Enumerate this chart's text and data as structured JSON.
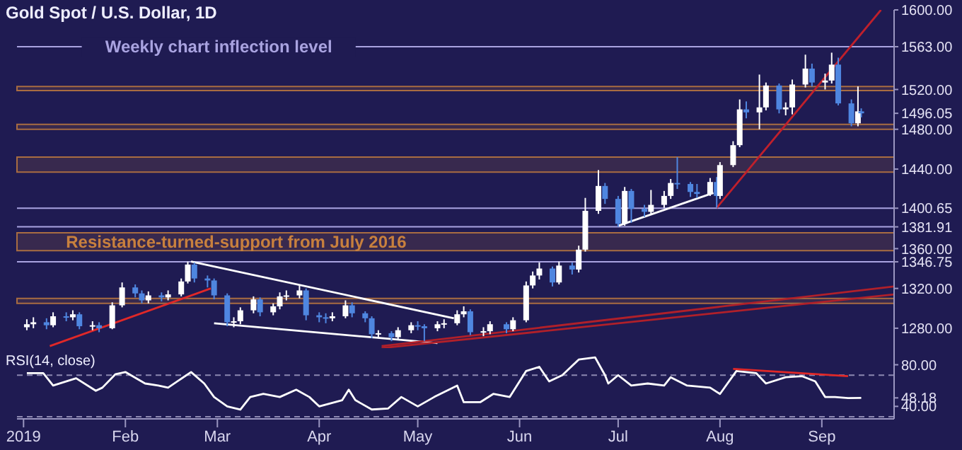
{
  "chart_data": [
    {
      "type": "candlestick",
      "title": "Gold Spot / U.S. Dollar, 1D",
      "x": [
        "2019-01-02",
        "2019-01-04",
        "2019-01-08",
        "2019-01-10",
        "2019-01-14",
        "2019-01-16",
        "2019-01-18",
        "2019-01-22",
        "2019-01-24",
        "2019-01-28",
        "2019-01-31",
        "2019-02-04",
        "2019-02-06",
        "2019-02-08",
        "2019-02-12",
        "2019-02-14",
        "2019-02-18",
        "2019-02-20",
        "2019-02-22",
        "2019-02-26",
        "2019-02-28",
        "2019-03-04",
        "2019-03-06",
        "2019-03-08",
        "2019-03-12",
        "2019-03-14",
        "2019-03-18",
        "2019-03-20",
        "2019-03-22",
        "2019-03-26",
        "2019-03-28",
        "2019-04-01",
        "2019-04-03",
        "2019-04-05",
        "2019-04-09",
        "2019-04-11",
        "2019-04-15",
        "2019-04-17",
        "2019-04-19",
        "2019-04-23",
        "2019-04-25",
        "2019-04-29",
        "2019-05-01",
        "2019-05-03",
        "2019-05-07",
        "2019-05-09",
        "2019-05-13",
        "2019-05-15",
        "2019-05-17",
        "2019-05-21",
        "2019-05-23",
        "2019-05-28",
        "2019-05-30",
        "2019-06-03",
        "2019-06-05",
        "2019-06-07",
        "2019-06-11",
        "2019-06-13",
        "2019-06-17",
        "2019-06-19",
        "2019-06-21",
        "2019-06-25",
        "2019-06-27",
        "2019-07-01",
        "2019-07-03",
        "2019-07-05",
        "2019-07-09",
        "2019-07-11",
        "2019-07-15",
        "2019-07-17",
        "2019-07-19",
        "2019-07-23",
        "2019-07-25",
        "2019-07-29",
        "2019-07-31",
        "2019-08-01",
        "2019-08-05",
        "2019-08-07",
        "2019-08-09",
        "2019-08-13",
        "2019-08-15",
        "2019-08-19",
        "2019-08-21",
        "2019-08-23",
        "2019-08-27",
        "2019-08-29",
        "2019-09-02",
        "2019-09-04",
        "2019-09-06",
        "2019-09-10",
        "2019-09-12",
        "2019-09-13"
      ],
      "ohlc": [
        [
          1281,
          1289,
          1278,
          1284
        ],
        [
          1284,
          1291,
          1280,
          1286
        ],
        [
          1286,
          1290,
          1279,
          1283
        ],
        [
          1283,
          1296,
          1281,
          1292
        ],
        [
          1292,
          1296,
          1287,
          1291
        ],
        [
          1291,
          1298,
          1288,
          1294
        ],
        [
          1294,
          1296,
          1279,
          1282
        ],
        [
          1282,
          1287,
          1278,
          1283
        ],
        [
          1283,
          1286,
          1276,
          1280
        ],
        [
          1280,
          1306,
          1279,
          1303
        ],
        [
          1303,
          1326,
          1301,
          1321
        ],
        [
          1321,
          1324,
          1311,
          1315
        ],
        [
          1315,
          1318,
          1305,
          1308
        ],
        [
          1308,
          1317,
          1305,
          1313
        ],
        [
          1313,
          1316,
          1307,
          1311
        ],
        [
          1311,
          1318,
          1308,
          1314
        ],
        [
          1314,
          1330,
          1312,
          1327
        ],
        [
          1327,
          1347,
          1325,
          1344
        ],
        [
          1344,
          1346,
          1326,
          1330
        ],
        [
          1330,
          1333,
          1321,
          1328
        ],
        [
          1328,
          1330,
          1309,
          1313
        ],
        [
          1313,
          1315,
          1282,
          1286
        ],
        [
          1286,
          1291,
          1281,
          1287
        ],
        [
          1287,
          1301,
          1284,
          1298
        ],
        [
          1298,
          1312,
          1295,
          1309
        ],
        [
          1309,
          1311,
          1292,
          1296
        ],
        [
          1296,
          1305,
          1293,
          1302
        ],
        [
          1302,
          1316,
          1299,
          1312
        ],
        [
          1312,
          1318,
          1308,
          1313
        ],
        [
          1313,
          1324,
          1310,
          1318
        ],
        [
          1318,
          1320,
          1288,
          1293
        ],
        [
          1293,
          1296,
          1286,
          1291
        ],
        [
          1291,
          1295,
          1285,
          1290
        ],
        [
          1290,
          1296,
          1287,
          1292
        ],
        [
          1292,
          1308,
          1290,
          1303
        ],
        [
          1303,
          1306,
          1291,
          1295
        ],
        [
          1295,
          1297,
          1286,
          1290
        ],
        [
          1290,
          1292,
          1270,
          1274
        ],
        [
          1274,
          1278,
          1271,
          1275
        ],
        [
          1275,
          1277,
          1267,
          1271
        ],
        [
          1271,
          1281,
          1268,
          1278
        ],
        [
          1278,
          1286,
          1275,
          1283
        ],
        [
          1283,
          1287,
          1278,
          1282
        ],
        [
          1282,
          1284,
          1267,
          1280
        ],
        [
          1280,
          1287,
          1277,
          1284
        ],
        [
          1284,
          1289,
          1280,
          1285
        ],
        [
          1285,
          1298,
          1283,
          1294
        ],
        [
          1294,
          1302,
          1291,
          1297
        ],
        [
          1297,
          1299,
          1273,
          1276
        ],
        [
          1276,
          1281,
          1272,
          1277
        ],
        [
          1277,
          1287,
          1274,
          1284
        ],
        [
          1284,
          1286,
          1275,
          1279
        ],
        [
          1279,
          1291,
          1277,
          1288
        ],
        [
          1288,
          1327,
          1286,
          1323
        ],
        [
          1323,
          1337,
          1320,
          1333
        ],
        [
          1333,
          1346,
          1329,
          1340
        ],
        [
          1340,
          1342,
          1322,
          1326
        ],
        [
          1326,
          1347,
          1324,
          1343
        ],
        [
          1343,
          1346,
          1334,
          1339
        ],
        [
          1339,
          1363,
          1336,
          1359
        ],
        [
          1359,
          1411,
          1357,
          1398
        ],
        [
          1398,
          1439,
          1395,
          1423
        ],
        [
          1423,
          1426,
          1405,
          1410
        ],
        [
          1410,
          1413,
          1382,
          1385
        ],
        [
          1385,
          1422,
          1383,
          1418
        ],
        [
          1418,
          1420,
          1386,
          1400
        ],
        [
          1400,
          1404,
          1392,
          1397
        ],
        [
          1397,
          1419,
          1394,
          1404
        ],
        [
          1404,
          1418,
          1401,
          1413
        ],
        [
          1413,
          1430,
          1410,
          1426
        ],
        [
          1426,
          1452,
          1420,
          1425
        ],
        [
          1425,
          1427,
          1412,
          1417
        ],
        [
          1417,
          1425,
          1411,
          1415
        ],
        [
          1415,
          1431,
          1413,
          1427
        ],
        [
          1427,
          1432,
          1401,
          1413
        ],
        [
          1413,
          1447,
          1410,
          1444
        ],
        [
          1444,
          1468,
          1442,
          1464
        ],
        [
          1464,
          1510,
          1462,
          1500
        ],
        [
          1500,
          1508,
          1491,
          1497
        ],
        [
          1497,
          1535,
          1480,
          1502
        ],
        [
          1502,
          1527,
          1499,
          1524
        ],
        [
          1524,
          1526,
          1496,
          1500
        ],
        [
          1500,
          1507,
          1494,
          1502
        ],
        [
          1502,
          1530,
          1495,
          1525
        ],
        [
          1525,
          1555,
          1522,
          1541
        ],
        [
          1541,
          1546,
          1523,
          1527
        ],
        [
          1527,
          1536,
          1520,
          1529
        ],
        [
          1529,
          1557,
          1526,
          1545
        ],
        [
          1545,
          1552,
          1504,
          1506
        ],
        [
          1506,
          1510,
          1483,
          1486
        ],
        [
          1486,
          1523,
          1483,
          1498
        ],
        [
          1498,
          1501,
          1492,
          1496.05
        ]
      ],
      "series": [
        {
          "type": "line",
          "x": [
            "2019-01-09",
            "2019-02-27"
          ],
          "values": [
            1262,
            1320
          ],
          "color": "#e02828"
        },
        {
          "type": "line",
          "x": [
            "2019-02-21",
            "2019-05-12"
          ],
          "values": [
            1347,
            1290
          ],
          "color": "#ffffff"
        },
        {
          "type": "line",
          "x": [
            "2019-02-28",
            "2019-05-07"
          ],
          "values": [
            1285,
            1265
          ],
          "color": "#ffffff"
        },
        {
          "type": "line",
          "x": [
            "2019-07-01",
            "2019-07-30"
          ],
          "values": [
            1383,
            1416
          ],
          "color": "#ffffff"
        },
        {
          "type": "line",
          "x": [
            "2019-07-31",
            "2019-09-19"
          ],
          "values": [
            1401,
            1600
          ],
          "color": "#c0202c"
        },
        {
          "type": "line",
          "x": [
            "2019-04-20",
            "2019-09-23"
          ],
          "values": [
            1262,
            1322
          ],
          "color": "#b0202a"
        },
        {
          "type": "line",
          "x": [
            "2019-04-20",
            "2019-09-23"
          ],
          "values": [
            1260,
            1314
          ],
          "color": "#b0202a"
        }
      ],
      "xlim": [
        "2018-12-30",
        "2019-09-23"
      ],
      "ylim": [
        1260,
        1600
      ],
      "yticks": [
        {
          "value": 1280,
          "label": "1280.00"
        },
        {
          "value": 1320,
          "label": "1320.00"
        },
        {
          "value": 1346.75,
          "label": "1346.75"
        },
        {
          "value": 1360,
          "label": "1360.00"
        },
        {
          "value": 1381.91,
          "label": "1381.91"
        },
        {
          "value": 1400.65,
          "label": "1400.65"
        },
        {
          "value": 1440,
          "label": "1440.00"
        },
        {
          "value": 1480,
          "label": "1480.00"
        },
        {
          "value": 1496.05,
          "label": "1496.05"
        },
        {
          "value": 1520,
          "label": "1520.00"
        },
        {
          "value": 1563,
          "label": "1563.00"
        },
        {
          "value": 1600,
          "label": "1600.00"
        }
      ],
      "tick_labels": "y",
      "ref_lines": [
        {
          "axis": "y",
          "value": 1563,
          "label": "Weekly chart inflection level",
          "color": "#a9a3e0"
        },
        {
          "axis": "y",
          "value": 1400.65,
          "color": "#a9a3e0"
        },
        {
          "axis": "y",
          "value": 1381.91,
          "color": "#a9a3e0"
        },
        {
          "axis": "y",
          "value": 1346.75,
          "color": "#a9a3e0"
        }
      ],
      "bands": [
        {
          "axis": "y",
          "from": 1358,
          "to": 1376,
          "label": "Resistance-turned-support from July 2016",
          "color": "#c8803e"
        },
        {
          "axis": "y",
          "from": 1305,
          "to": 1310,
          "color": "#c8803e"
        },
        {
          "axis": "y",
          "from": 1437,
          "to": 1452,
          "color": "#c8803e"
        },
        {
          "axis": "y",
          "from": 1480,
          "to": 1485,
          "color": "#c8803e"
        },
        {
          "axis": "y",
          "from": 1519,
          "to": 1523,
          "color": "#c8803e"
        }
      ]
    },
    {
      "type": "line",
      "title": "RSI(14, close)",
      "x": [
        "2019-01-02",
        "2019-01-07",
        "2019-01-10",
        "2019-01-17",
        "2019-01-23",
        "2019-01-25",
        "2019-01-29",
        "2019-02-01",
        "2019-02-07",
        "2019-02-11",
        "2019-02-14",
        "2019-02-21",
        "2019-02-25",
        "2019-02-28",
        "2019-03-04",
        "2019-03-08",
        "2019-03-11",
        "2019-03-15",
        "2019-03-20",
        "2019-03-25",
        "2019-03-29",
        "2019-04-01",
        "2019-04-08",
        "2019-04-10",
        "2019-04-12",
        "2019-04-17",
        "2019-04-22",
        "2019-04-26",
        "2019-05-01",
        "2019-05-06",
        "2019-05-13",
        "2019-05-15",
        "2019-05-20",
        "2019-05-24",
        "2019-05-29",
        "2019-06-03",
        "2019-06-07",
        "2019-06-10",
        "2019-06-14",
        "2019-06-19",
        "2019-06-24",
        "2019-06-27",
        "2019-06-28",
        "2019-07-01",
        "2019-07-05",
        "2019-07-10",
        "2019-07-15",
        "2019-07-17",
        "2019-07-22",
        "2019-07-29",
        "2019-08-01",
        "2019-08-06",
        "2019-08-12",
        "2019-08-15",
        "2019-08-21",
        "2019-08-26",
        "2019-08-30",
        "2019-09-02",
        "2019-09-05",
        "2019-09-09",
        "2019-09-13"
      ],
      "series": [
        {
          "values": [
            72,
            72,
            60,
            67,
            55,
            58,
            71,
            73,
            62,
            60,
            58,
            73,
            62,
            49,
            40,
            37,
            49,
            52,
            49,
            56,
            49,
            40,
            46,
            56,
            46,
            37,
            38,
            49,
            40,
            49,
            60,
            44,
            44,
            52,
            49,
            74,
            78,
            64,
            70,
            85,
            87,
            70,
            62,
            70,
            60,
            62,
            60,
            68,
            60,
            58,
            52,
            74,
            72,
            62,
            68,
            69,
            64,
            49,
            49,
            48,
            48.18
          ],
          "color": "#ffffff"
        },
        {
          "type": "line",
          "x": [
            "2019-08-05",
            "2019-09-09"
          ],
          "values": [
            76,
            69
          ],
          "color": "#e02828"
        }
      ],
      "xlim": [
        "2018-12-30",
        "2019-09-23"
      ],
      "xticks": [
        {
          "value": "2019-01-01",
          "label": "2019"
        },
        {
          "value": "2019-02-01",
          "label": "Feb"
        },
        {
          "value": "2019-03-01",
          "label": "Mar"
        },
        {
          "value": "2019-04-01",
          "label": "Apr"
        },
        {
          "value": "2019-05-01",
          "label": "May"
        },
        {
          "value": "2019-06-01",
          "label": "Jun"
        },
        {
          "value": "2019-07-01",
          "label": "Jul"
        },
        {
          "value": "2019-08-01",
          "label": "Aug"
        },
        {
          "value": "2019-09-01",
          "label": "Sep"
        }
      ],
      "ylim": [
        28,
        96
      ],
      "yticks": [
        {
          "value": 40,
          "label": "40.00"
        },
        {
          "value": 48.18,
          "label": "48.18"
        },
        {
          "value": 80,
          "label": "80.00"
        }
      ],
      "ref_lines": [
        {
          "axis": "y",
          "value": 70,
          "color": "#8c88b0",
          "line_style": "dashed"
        },
        {
          "axis": "y",
          "value": 30,
          "color": "#8c88b0",
          "line_style": "dashed"
        }
      ]
    }
  ]
}
